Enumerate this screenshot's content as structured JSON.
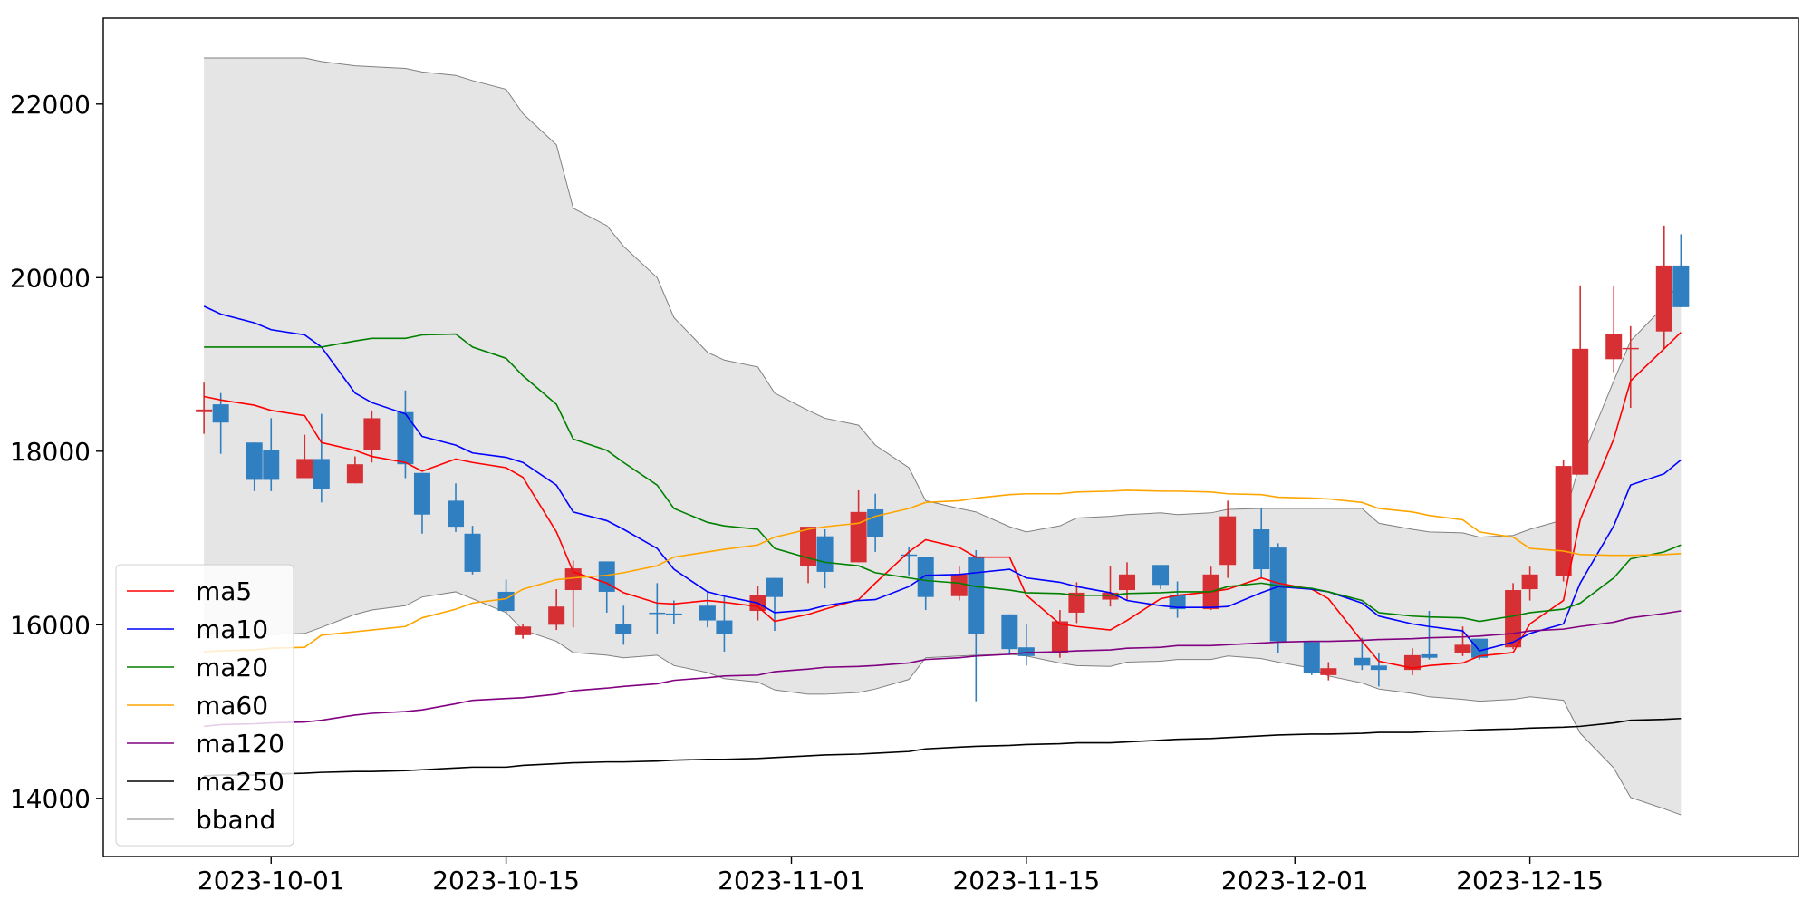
{
  "chart_data": {
    "type": "candlestick",
    "x": [
      "2023-09-27",
      "2023-09-28",
      "2023-09-30",
      "2023-10-01",
      "2023-10-03",
      "2023-10-04",
      "2023-10-06",
      "2023-10-07",
      "2023-10-09",
      "2023-10-10",
      "2023-10-12",
      "2023-10-13",
      "2023-10-15",
      "2023-10-16",
      "2023-10-18",
      "2023-10-19",
      "2023-10-21",
      "2023-10-22",
      "2023-10-24",
      "2023-10-25",
      "2023-10-27",
      "2023-10-28",
      "2023-10-30",
      "2023-10-31",
      "2023-11-02",
      "2023-11-03",
      "2023-11-05",
      "2023-11-06",
      "2023-11-08",
      "2023-11-09",
      "2023-11-11",
      "2023-11-12",
      "2023-11-14",
      "2023-11-15",
      "2023-11-17",
      "2023-11-18",
      "2023-11-20",
      "2023-11-21",
      "2023-11-23",
      "2023-11-24",
      "2023-11-26",
      "2023-11-27",
      "2023-11-29",
      "2023-11-30",
      "2023-12-02",
      "2023-12-03",
      "2023-12-05",
      "2023-12-06",
      "2023-12-08",
      "2023-12-09",
      "2023-12-11",
      "2023-12-12",
      "2023-12-14",
      "2023-12-15",
      "2023-12-17",
      "2023-12-18",
      "2023-12-20",
      "2023-12-21",
      "2023-12-23",
      "2023-12-24"
    ],
    "open": [
      18450,
      18540,
      18100,
      18010,
      17690,
      17910,
      17630,
      18010,
      18450,
      17750,
      17430,
      17050,
      16380,
      15880,
      16000,
      16400,
      16730,
      16010,
      16140,
      16130,
      16220,
      16050,
      16160,
      16540,
      16680,
      17020,
      16720,
      17330,
      16810,
      16780,
      16330,
      16780,
      16120,
      15740,
      15680,
      16140,
      16290,
      16400,
      16690,
      16340,
      16180,
      16690,
      17100,
      16890,
      15800,
      15420,
      15620,
      15530,
      15480,
      15660,
      15680,
      15840,
      15740,
      16410,
      16560,
      17730,
      19060,
      19180,
      19380,
      20140
    ],
    "high": [
      18790,
      18670,
      18100,
      18380,
      18190,
      18430,
      17940,
      18470,
      18700,
      17750,
      17630,
      17140,
      16520,
      16010,
      16410,
      16740,
      16730,
      16220,
      16480,
      16280,
      16380,
      16320,
      16450,
      16540,
      17130,
      17100,
      17550,
      17510,
      16900,
      16780,
      16670,
      16860,
      16120,
      16010,
      16170,
      16490,
      16680,
      16720,
      16690,
      16500,
      16670,
      17430,
      17340,
      16940,
      15800,
      15570,
      15850,
      15680,
      15730,
      16160,
      15980,
      15840,
      16480,
      16670,
      17900,
      19910,
      19910,
      19440,
      20600,
      20500
    ],
    "low": [
      18200,
      17970,
      17540,
      17540,
      17690,
      17410,
      17630,
      17870,
      17690,
      17050,
      17070,
      16580,
      16140,
      15840,
      15940,
      15970,
      16140,
      15770,
      15890,
      16010,
      15970,
      15690,
      16050,
      15930,
      16480,
      16420,
      16720,
      16840,
      16570,
      16170,
      16280,
      15120,
      15650,
      15530,
      15620,
      16020,
      16210,
      16280,
      16410,
      16080,
      16170,
      16540,
      16540,
      15680,
      15420,
      15360,
      15480,
      15290,
      15420,
      15600,
      15640,
      15600,
      15720,
      16280,
      16500,
      17730,
      18910,
      18500,
      19180,
      19660
    ],
    "close": [
      18480,
      18330,
      17670,
      17670,
      17910,
      17570,
      17850,
      18380,
      17850,
      17270,
      17130,
      16610,
      16160,
      15980,
      16210,
      16650,
      16380,
      15890,
      16130,
      16120,
      16050,
      15890,
      16340,
      16320,
      17130,
      16610,
      17300,
      17010,
      16800,
      16320,
      16580,
      15890,
      15720,
      15640,
      16040,
      16370,
      16370,
      16580,
      16460,
      16180,
      16580,
      17250,
      16640,
      15810,
      15450,
      15500,
      15530,
      15480,
      15650,
      15620,
      15770,
      15620,
      16400,
      16580,
      17830,
      19180,
      19350,
      19190,
      20140,
      19660
    ],
    "up_color": "#d62f34",
    "down_color": "#2f7fc1",
    "series": [
      {
        "name": "ma5",
        "color": "#ff0000",
        "values": [
          18630,
          18590,
          18530,
          18470,
          18410,
          18100,
          18010,
          17940,
          17870,
          17770,
          17910,
          17870,
          17810,
          17700,
          17070,
          16610,
          16480,
          16370,
          16250,
          16240,
          16280,
          16260,
          16210,
          16040,
          16120,
          16180,
          16290,
          16480,
          16840,
          16980,
          16890,
          16780,
          16780,
          16340,
          16010,
          15980,
          15940,
          16050,
          16300,
          16340,
          16380,
          16410,
          16540,
          16480,
          16410,
          16300,
          15810,
          15580,
          15500,
          15530,
          15560,
          15640,
          15680,
          16010,
          16280,
          17210,
          18140,
          18810,
          19180,
          19370
        ]
      },
      {
        "name": "ma10",
        "color": "#0000ff",
        "values": [
          19670,
          19580,
          19480,
          19400,
          19340,
          19200,
          18670,
          18560,
          18430,
          18170,
          18070,
          17980,
          17930,
          17870,
          17610,
          17300,
          17200,
          17100,
          16880,
          16640,
          16380,
          16330,
          16250,
          16140,
          16170,
          16220,
          16280,
          16290,
          16440,
          16570,
          16580,
          16600,
          16640,
          16540,
          16490,
          16440,
          16370,
          16280,
          16220,
          16200,
          16200,
          16210,
          16370,
          16440,
          16410,
          16380,
          16250,
          16100,
          16010,
          15980,
          15930,
          15700,
          15800,
          15900,
          16010,
          16480,
          17140,
          17610,
          17740,
          17900
        ]
      },
      {
        "name": "ma20",
        "color": "#008000",
        "values": [
          19200,
          19200,
          19200,
          19200,
          19200,
          19200,
          19270,
          19300,
          19300,
          19340,
          19350,
          19200,
          19070,
          18870,
          18540,
          18140,
          18010,
          17870,
          17610,
          17340,
          17180,
          17140,
          17100,
          16880,
          16770,
          16720,
          16680,
          16600,
          16540,
          16510,
          16480,
          16440,
          16400,
          16370,
          16360,
          16340,
          16340,
          16360,
          16370,
          16380,
          16380,
          16440,
          16480,
          16450,
          16420,
          16380,
          16280,
          16140,
          16100,
          16090,
          16080,
          16040,
          16100,
          16140,
          16180,
          16250,
          16540,
          16760,
          16840,
          16920
        ]
      },
      {
        "name": "ma60",
        "color": "#ffa500",
        "values": [
          15690,
          15700,
          15710,
          15730,
          15740,
          15880,
          15920,
          15940,
          15980,
          16080,
          16180,
          16250,
          16300,
          16410,
          16520,
          16540,
          16570,
          16600,
          16680,
          16780,
          16840,
          16870,
          16920,
          17010,
          17100,
          17130,
          17170,
          17250,
          17340,
          17410,
          17430,
          17460,
          17500,
          17510,
          17510,
          17530,
          17540,
          17550,
          17540,
          17540,
          17530,
          17510,
          17500,
          17470,
          17460,
          17450,
          17410,
          17340,
          17300,
          17260,
          17210,
          17070,
          17010,
          16880,
          16850,
          16810,
          16800,
          16800,
          16810,
          16820
        ]
      },
      {
        "name": "ma120",
        "color": "#800080",
        "values": [
          14830,
          14850,
          14860,
          14870,
          14880,
          14900,
          14960,
          14980,
          15000,
          15020,
          15090,
          15130,
          15150,
          15160,
          15200,
          15240,
          15270,
          15290,
          15320,
          15360,
          15390,
          15410,
          15420,
          15460,
          15490,
          15510,
          15520,
          15530,
          15560,
          15600,
          15620,
          15640,
          15660,
          15680,
          15690,
          15700,
          15710,
          15730,
          15740,
          15760,
          15760,
          15770,
          15790,
          15800,
          15810,
          15810,
          15820,
          15830,
          15840,
          15850,
          15860,
          15870,
          15900,
          15930,
          15950,
          15980,
          16030,
          16080,
          16130,
          16160
        ]
      },
      {
        "name": "ma250",
        "color": "#000000",
        "values": [
          14260,
          14270,
          14270,
          14280,
          14290,
          14300,
          14310,
          14310,
          14320,
          14330,
          14350,
          14360,
          14360,
          14380,
          14400,
          14410,
          14420,
          14420,
          14430,
          14440,
          14450,
          14450,
          14460,
          14470,
          14490,
          14500,
          14510,
          14520,
          14540,
          14570,
          14590,
          14600,
          14610,
          14620,
          14630,
          14640,
          14640,
          14650,
          14670,
          14680,
          14690,
          14700,
          14720,
          14730,
          14740,
          14740,
          14750,
          14760,
          14760,
          14770,
          14780,
          14790,
          14800,
          14810,
          14820,
          14830,
          14870,
          14900,
          14910,
          14920
        ]
      }
    ],
    "bband": {
      "name": "bband",
      "color": "#808080",
      "fill": "#e5e5e5",
      "upper": [
        22530,
        22530,
        22530,
        22530,
        22530,
        22490,
        22440,
        22430,
        22410,
        22370,
        22330,
        22270,
        22170,
        21890,
        21530,
        20800,
        20600,
        20360,
        20000,
        19540,
        19140,
        19050,
        18970,
        18670,
        18470,
        18380,
        18300,
        18070,
        17810,
        17430,
        17340,
        17300,
        17130,
        17070,
        17140,
        17230,
        17250,
        17270,
        17290,
        17270,
        17290,
        17330,
        17340,
        17340,
        17340,
        17340,
        17340,
        17170,
        17100,
        17070,
        17060,
        17010,
        17030,
        17100,
        17210,
        17870,
        18810,
        19270,
        19670,
        20000
      ],
      "lower": [
        15900,
        15890,
        15890,
        15890,
        15900,
        15970,
        16120,
        16170,
        16220,
        16320,
        16380,
        16300,
        16140,
        15940,
        15810,
        15680,
        15650,
        15620,
        15650,
        15530,
        15450,
        15380,
        15340,
        15250,
        15200,
        15200,
        15220,
        15260,
        15370,
        15620,
        15640,
        15650,
        15660,
        15640,
        15560,
        15530,
        15520,
        15570,
        15580,
        15600,
        15600,
        15640,
        15610,
        15570,
        15500,
        15410,
        15330,
        15260,
        15210,
        15170,
        15140,
        15120,
        15140,
        15170,
        15130,
        14750,
        14350,
        14010,
        13880,
        13810
      ]
    },
    "xlim": [
      "2023-09-21",
      "2023-12-31"
    ],
    "xticks": [
      "2023-10-01",
      "2023-10-15",
      "2023-11-01",
      "2023-11-15",
      "2023-12-01",
      "2023-12-15"
    ],
    "ylim": [
      13330,
      22990
    ],
    "yticks": [
      14000,
      16000,
      18000,
      20000,
      22000
    ],
    "legend": "lower left"
  }
}
